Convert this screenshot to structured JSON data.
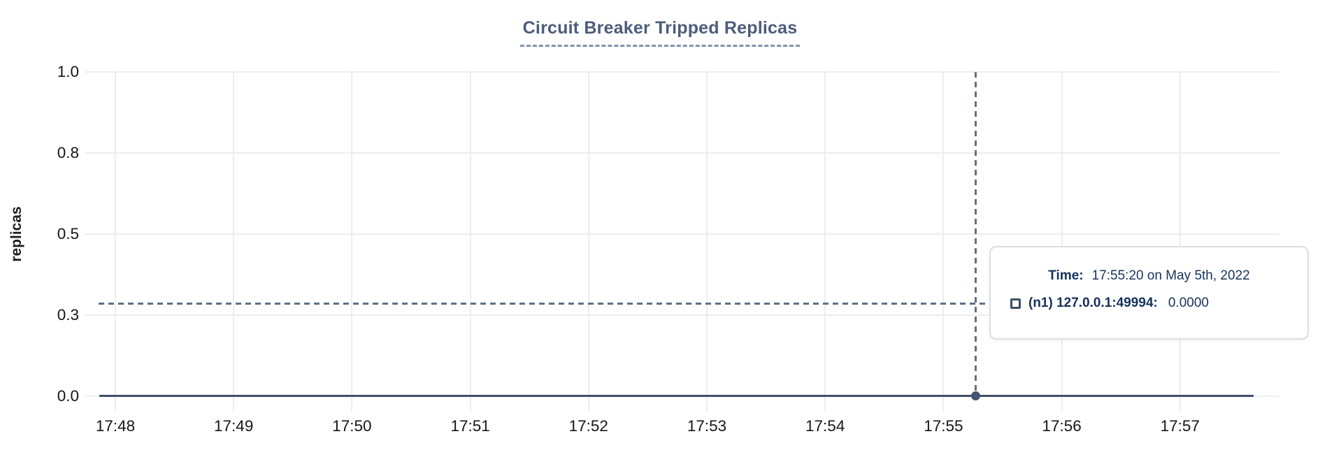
{
  "chart": {
    "title": "Circuit Breaker Tripped Replicas",
    "y_axis_label": "replicas",
    "y_ticks": [
      "1.0",
      "0.8",
      "0.5",
      "0.3",
      "0.0"
    ],
    "x_ticks": [
      "17:48",
      "17:49",
      "17:50",
      "17:51",
      "17:52",
      "17:53",
      "17:54",
      "17:55",
      "17:56",
      "17:57"
    ]
  },
  "tooltip": {
    "time_label": "Time:",
    "time_value": "17:55:20 on May 5th, 2022",
    "marker_icon": "open-square",
    "series_label": "(n1) 127.0.0.1:49994:",
    "series_value": "0.0000"
  },
  "chart_data": {
    "type": "line",
    "title": "Circuit Breaker Tripped Replicas",
    "xlabel": "",
    "ylabel": "replicas",
    "ylim": [
      0,
      1
    ],
    "y_tick_labels": [
      "0.0",
      "0.3",
      "0.5",
      "0.8",
      "1.0"
    ],
    "x": [
      "17:48",
      "17:49",
      "17:50",
      "17:51",
      "17:52",
      "17:53",
      "17:54",
      "17:55",
      "17:56",
      "17:57"
    ],
    "series": [
      {
        "name": "(n1) 127.0.0.1:49994",
        "values": [
          0,
          0,
          0,
          0,
          0,
          0,
          0,
          0,
          0,
          0
        ]
      }
    ],
    "cursor": {
      "time": "17:55:20",
      "date": "May 5th, 2022",
      "value": 0.0
    },
    "grid": true,
    "legend_position": "tooltip",
    "colors": {
      "series": "#40506a",
      "title": "#4d5c7a",
      "title_underline": "#8593ae",
      "crosshair": "#5f7186",
      "grid": "#ededed",
      "tooltip_text": "#16335b",
      "tick_labels": "#161616"
    }
  }
}
